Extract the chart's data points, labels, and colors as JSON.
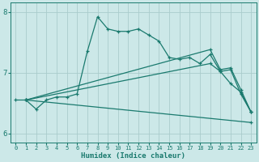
{
  "background_color": "#cce8e8",
  "grid_color": "#aacccc",
  "line_color": "#1a7a6e",
  "xlabel": "Humidex (Indice chaleur)",
  "xlim": [
    -0.5,
    23.5
  ],
  "ylim": [
    5.85,
    8.15
  ],
  "yticks": [
    6,
    7,
    8
  ],
  "xticks": [
    0,
    1,
    2,
    3,
    4,
    5,
    6,
    7,
    8,
    9,
    10,
    11,
    12,
    13,
    14,
    15,
    16,
    17,
    18,
    19,
    20,
    21,
    22,
    23
  ],
  "lines": [
    {
      "x": [
        0,
        1,
        2,
        3,
        4,
        5,
        6,
        7,
        8,
        9,
        10,
        11,
        12,
        13,
        14,
        15,
        16,
        17,
        18,
        19,
        20,
        21,
        22,
        23
      ],
      "y": [
        6.55,
        6.55,
        6.4,
        6.55,
        6.6,
        6.6,
        6.65,
        7.35,
        7.92,
        7.72,
        7.68,
        7.68,
        7.72,
        7.62,
        7.52,
        7.25,
        7.22,
        7.25,
        7.15,
        7.3,
        7.02,
        6.82,
        6.68,
        6.35
      ]
    },
    {
      "x": [
        1,
        19,
        20,
        21,
        22,
        23
      ],
      "y": [
        6.55,
        7.38,
        7.05,
        7.08,
        6.72,
        6.35
      ]
    },
    {
      "x": [
        1,
        19,
        20,
        21,
        22,
        23
      ],
      "y": [
        6.55,
        7.15,
        7.02,
        7.05,
        6.65,
        6.35
      ]
    },
    {
      "x": [
        1,
        23
      ],
      "y": [
        6.55,
        6.18
      ]
    }
  ],
  "figsize": [
    3.2,
    2.0
  ],
  "dpi": 100
}
